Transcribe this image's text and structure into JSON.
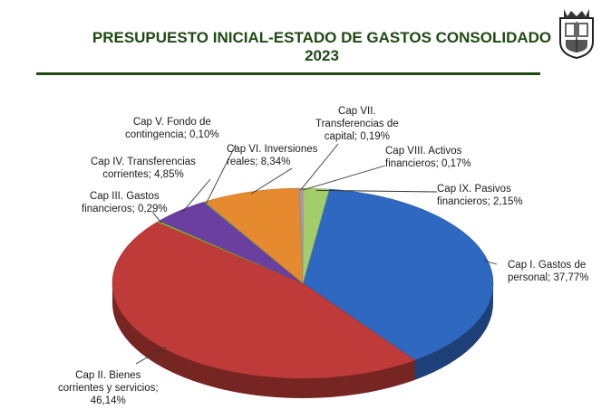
{
  "header": {
    "title_line1": "PRESUPUESTO INICIAL-ESTADO DE GASTOS CONSOLIDADO",
    "title_line2": "2023",
    "logo": "crest-icon"
  },
  "chart_data": {
    "type": "pie",
    "title": "PRESUPUESTO INICIAL-ESTADO DE GASTOS CONSOLIDADO 2023",
    "unit": "%",
    "slices": [
      {
        "label": "Cap I. Gastos de personal",
        "value": 37.77,
        "display": "37,77%",
        "color": "#2f68c1"
      },
      {
        "label": "Cap II. Bienes corrientes y servicios",
        "value": 46.14,
        "display": "46,14%",
        "color": "#bf3b39"
      },
      {
        "label": "Cap III. Gastos financieros",
        "value": 0.29,
        "display": "0,29%",
        "color": "#8da33f"
      },
      {
        "label": "Cap IV. Transferencias corrientes",
        "value": 4.85,
        "display": "4,85%",
        "color": "#6b3fa0"
      },
      {
        "label": "Cap V. Fondo de contingencia",
        "value": 0.1,
        "display": "0,10%",
        "color": "#2aa6c0"
      },
      {
        "label": "Cap VI. Inversiones reales",
        "value": 8.34,
        "display": "8,34%",
        "color": "#e58a2e"
      },
      {
        "label": "Cap VII. Transferencias de capital",
        "value": 0.19,
        "display": "0,19%",
        "color": "#8aa2cf"
      },
      {
        "label": "Cap VIII. Activos financieros",
        "value": 0.17,
        "display": "0,17%",
        "color": "#d89a9a"
      },
      {
        "label": "Cap IX. Pasivos financieros",
        "value": 2.15,
        "display": "2,15%",
        "color": "#a3cc6b"
      }
    ],
    "labels": [
      {
        "lines": [
          "Cap I. Gastos de",
          "personal; 37,77%"
        ]
      },
      {
        "lines": [
          "Cap II. Bienes",
          "corrientes y servicios;",
          "46,14%"
        ]
      },
      {
        "lines": [
          "Cap III. Gastos",
          "financieros; 0,29%"
        ]
      },
      {
        "lines": [
          "Cap IV. Transferencias",
          "corrientes; 4,85%"
        ]
      },
      {
        "lines": [
          "Cap V. Fondo de",
          "contingencia; 0,10%"
        ]
      },
      {
        "lines": [
          "Cap VI. Inversiones",
          "reales; 8,34%"
        ]
      },
      {
        "lines": [
          "Cap VII.",
          "Transferencias de",
          "capital; 0,19%"
        ]
      },
      {
        "lines": [
          "Cap VIII. Activos",
          "financieros; 0,17%"
        ]
      },
      {
        "lines": [
          "Cap IX. Pasivos",
          "financieros; 2,15%"
        ]
      }
    ]
  }
}
